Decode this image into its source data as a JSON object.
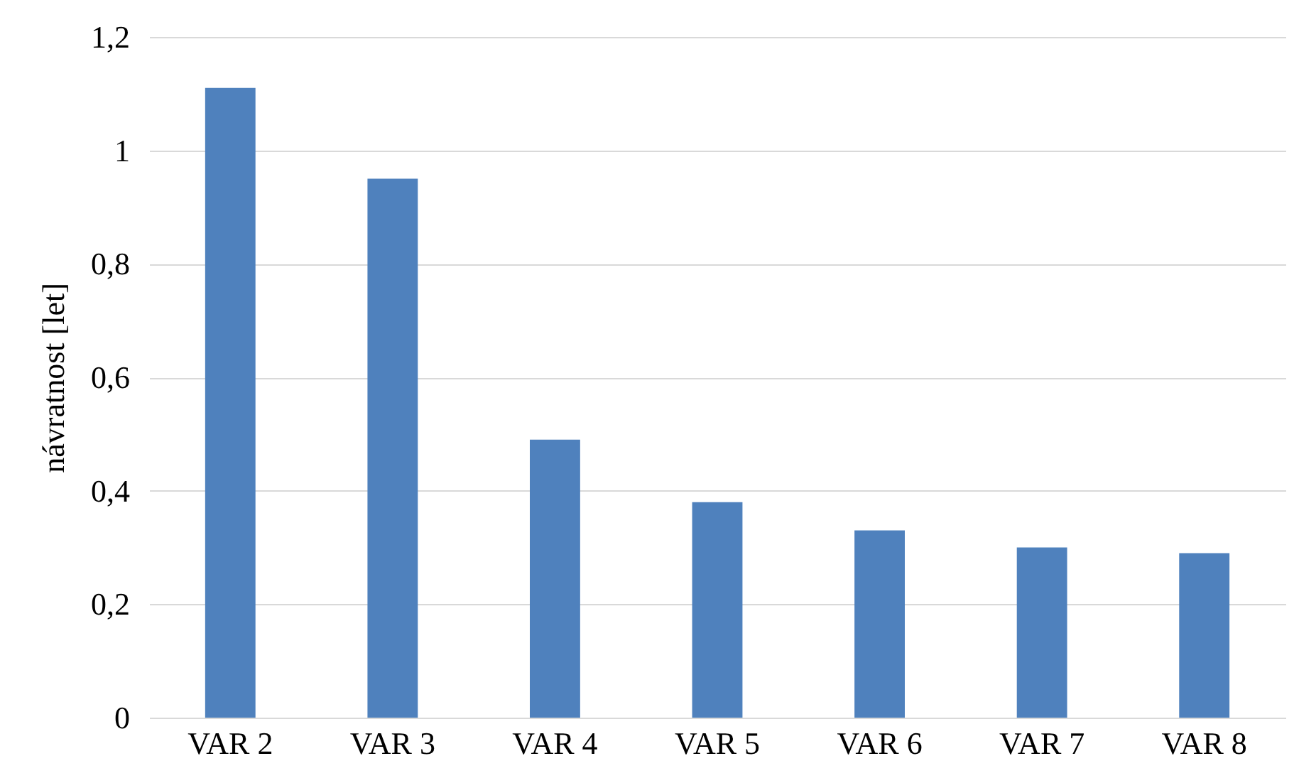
{
  "chart_data": {
    "type": "bar",
    "ylabel": "návratnost [let]",
    "categories": [
      "VAR 2",
      "VAR 3",
      "VAR 4",
      "VAR 5",
      "VAR 6",
      "VAR 7",
      "VAR 8"
    ],
    "values": [
      1.11,
      0.95,
      0.49,
      0.38,
      0.33,
      0.3,
      0.29
    ],
    "color": "#4f81bd",
    "ylim": [
      0,
      1.2
    ],
    "yticks": [
      0,
      {
        "value": 0.2,
        "label": "0,2"
      },
      {
        "value": 0.4,
        "label": "0,4"
      },
      {
        "value": 0.6,
        "label": "0,6"
      },
      {
        "value": 0.8,
        "label": "0,8"
      },
      1,
      {
        "value": 1.2,
        "label": "1,2"
      }
    ],
    "grid": "y"
  }
}
